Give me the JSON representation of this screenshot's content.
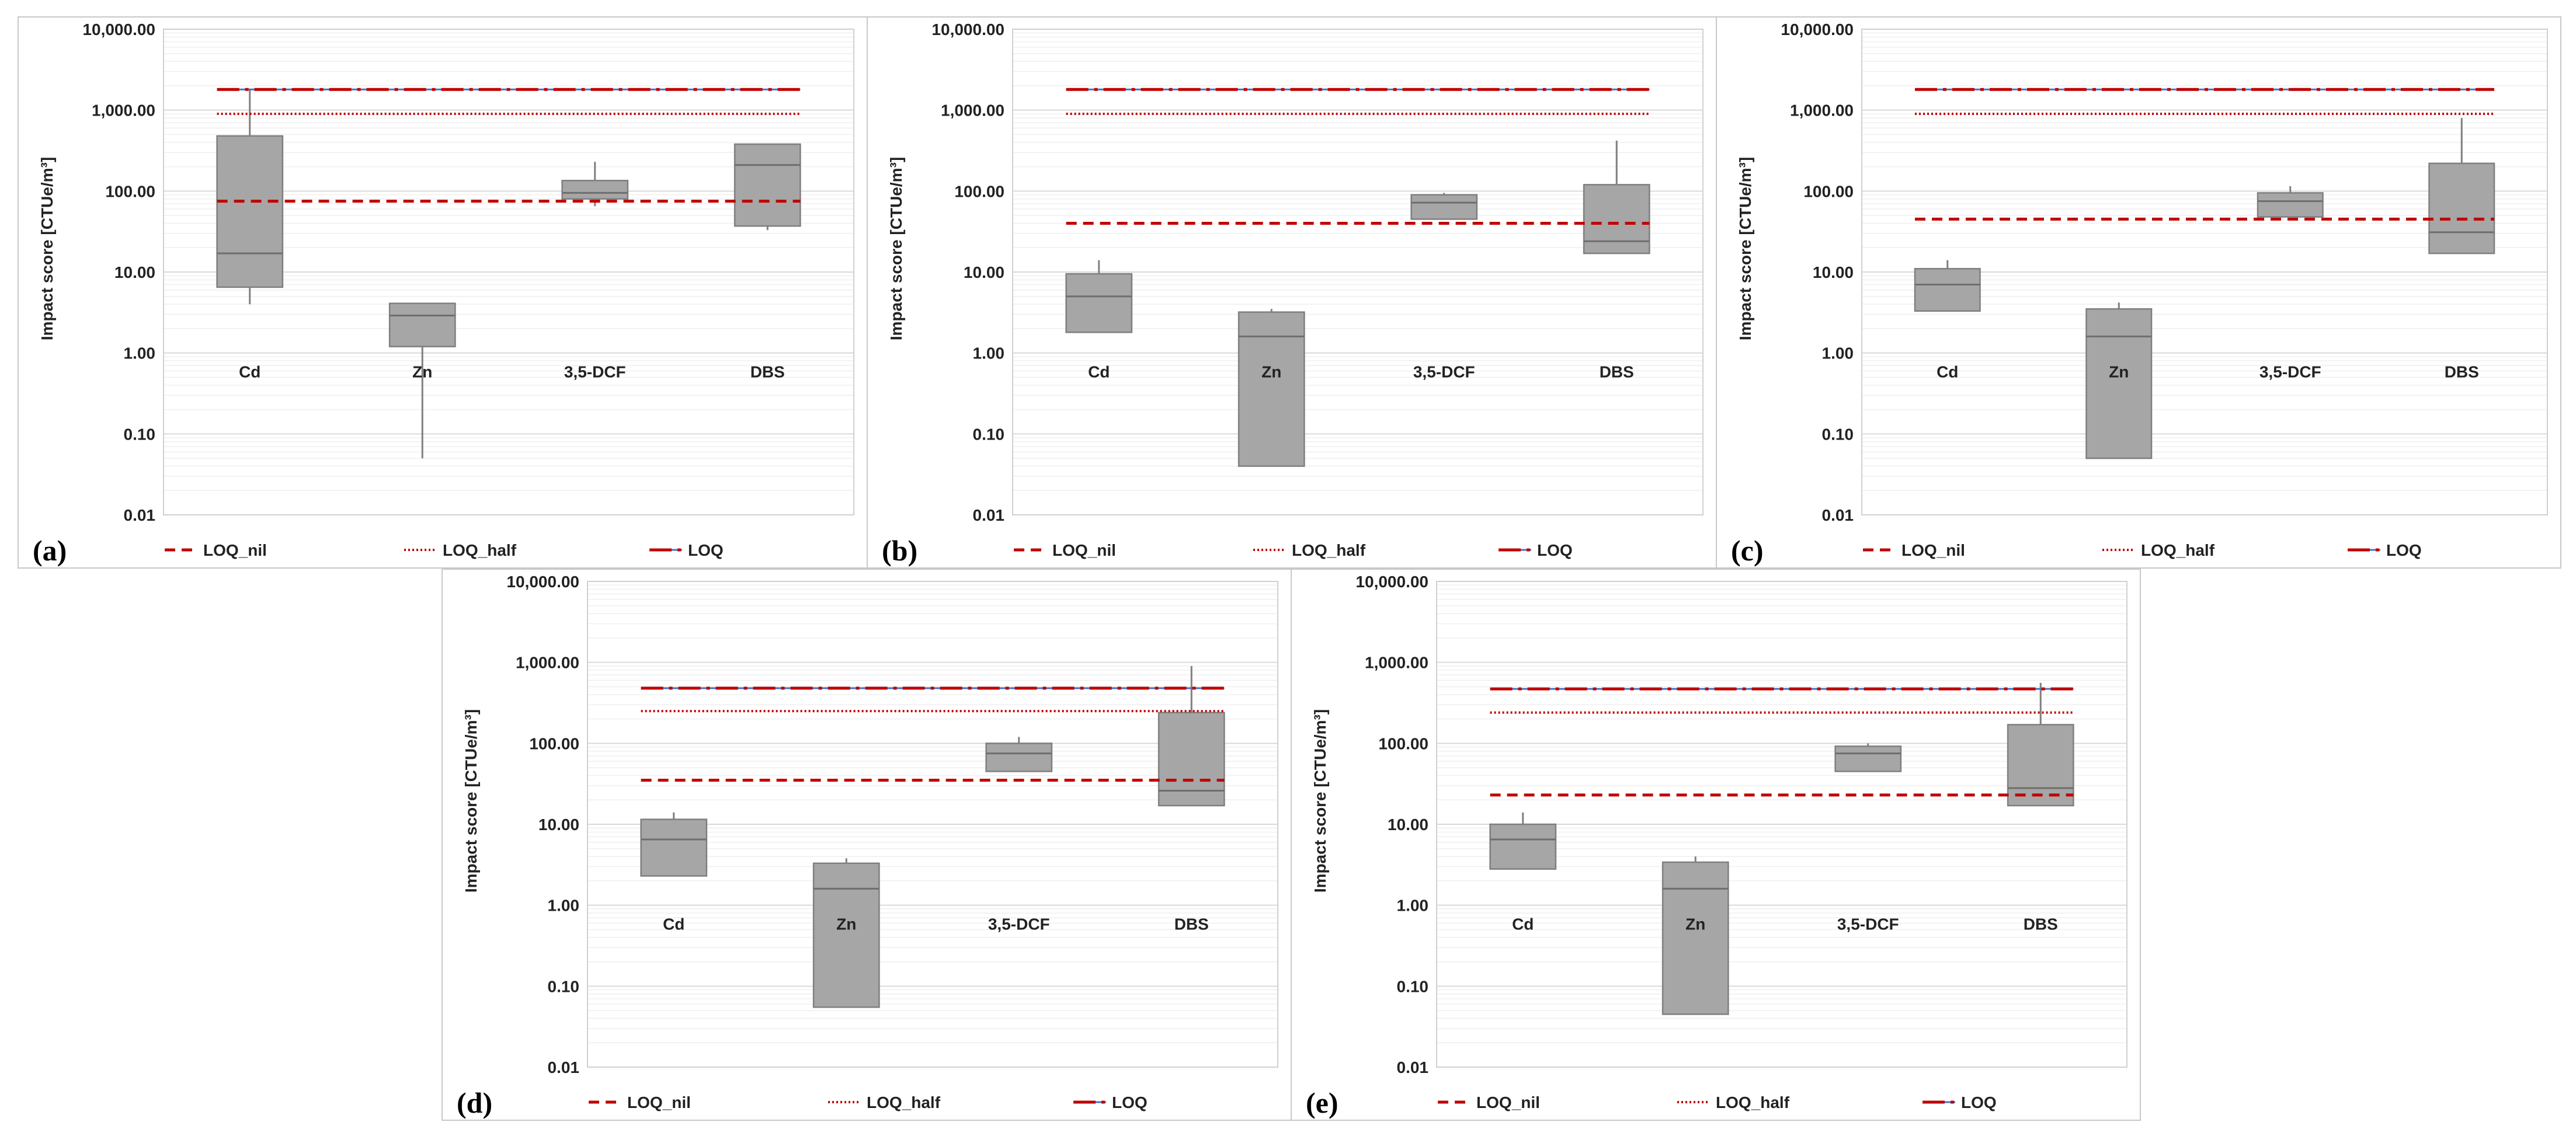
{
  "y_axis_label": "Impact score [CTUe/m³]",
  "legend": {
    "nil": "LOQ_nil",
    "half": "LOQ_half",
    "loq": "LOQ"
  },
  "colors": {
    "box": "#a6a6a6",
    "box_edge": "#7f7f7f",
    "loq_red": "#c00000",
    "loq_blue": "#4472c4",
    "grid": "#e3e3e3"
  },
  "chart_data": [
    {
      "type": "box",
      "panel_label": "(a)",
      "categories": [
        "Cd",
        "Zn",
        "3,5-DCF",
        "DBS"
      ],
      "y_scale": "log",
      "ylim": [
        0.01,
        10000
      ],
      "y_ticks": [
        "0.01",
        "0.10",
        "1.00",
        "10.00",
        "100.00",
        "1,000.00",
        "10,000.00"
      ],
      "boxes": [
        {
          "category": "Cd",
          "min": 4,
          "q1": 6.5,
          "median": 17,
          "q3": 480,
          "max": 1800
        },
        {
          "category": "Zn",
          "min": 0.05,
          "q1": 1.2,
          "median": 2.9,
          "q3": 4.1,
          "max": 4.1
        },
        {
          "category": "3,5-DCF",
          "min": 65,
          "q1": 80,
          "median": 95,
          "q3": 135,
          "max": 230
        },
        {
          "category": "DBS",
          "min": 33,
          "q1": 37,
          "median": 210,
          "q3": 380,
          "max": 380
        }
      ],
      "lines": {
        "LOQ_nil": 75,
        "LOQ_half": 900,
        "LOQ": 1800
      }
    },
    {
      "type": "box",
      "panel_label": "(b)",
      "categories": [
        "Cd",
        "Zn",
        "3,5-DCF",
        "DBS"
      ],
      "y_scale": "log",
      "ylim": [
        0.01,
        10000
      ],
      "y_ticks": [
        "0.01",
        "0.10",
        "1.00",
        "10.00",
        "100.00",
        "1,000.00",
        "10,000.00"
      ],
      "boxes": [
        {
          "category": "Cd",
          "min": 1.8,
          "q1": 1.8,
          "median": 5,
          "q3": 9.5,
          "max": 14
        },
        {
          "category": "Zn",
          "min": 0.04,
          "q1": 0.04,
          "median": 1.6,
          "q3": 3.2,
          "max": 3.5
        },
        {
          "category": "3,5-DCF",
          "min": 45,
          "q1": 45,
          "median": 72,
          "q3": 90,
          "max": 95
        },
        {
          "category": "DBS",
          "min": 17,
          "q1": 17,
          "median": 24,
          "q3": 120,
          "max": 420
        }
      ],
      "lines": {
        "LOQ_nil": 40,
        "LOQ_half": 900,
        "LOQ": 1800
      }
    },
    {
      "type": "box",
      "panel_label": "(c)",
      "categories": [
        "Cd",
        "Zn",
        "3,5-DCF",
        "DBS"
      ],
      "y_scale": "log",
      "ylim": [
        0.01,
        10000
      ],
      "y_ticks": [
        "0.01",
        "0.10",
        "1.00",
        "10.00",
        "100.00",
        "1,000.00",
        "10,000.00"
      ],
      "boxes": [
        {
          "category": "Cd",
          "min": 3.3,
          "q1": 3.3,
          "median": 7,
          "q3": 11,
          "max": 14
        },
        {
          "category": "Zn",
          "min": 0.05,
          "q1": 0.05,
          "median": 1.6,
          "q3": 3.5,
          "max": 4.2
        },
        {
          "category": "3,5-DCF",
          "min": 48,
          "q1": 48,
          "median": 75,
          "q3": 95,
          "max": 115
        },
        {
          "category": "DBS",
          "min": 17,
          "q1": 17,
          "median": 31,
          "q3": 220,
          "max": 800
        }
      ],
      "lines": {
        "LOQ_nil": 45,
        "LOQ_half": 900,
        "LOQ": 1800
      }
    },
    {
      "type": "box",
      "panel_label": "(d)",
      "categories": [
        "Cd",
        "Zn",
        "3,5-DCF",
        "DBS"
      ],
      "y_scale": "log",
      "ylim": [
        0.01,
        10000
      ],
      "y_ticks": [
        "0.01",
        "0.10",
        "1.00",
        "10.00",
        "100.00",
        "1,000.00",
        "10,000.00"
      ],
      "boxes": [
        {
          "category": "Cd",
          "min": 2.3,
          "q1": 2.3,
          "median": 6.5,
          "q3": 11.5,
          "max": 14
        },
        {
          "category": "Zn",
          "min": 0.055,
          "q1": 0.055,
          "median": 1.6,
          "q3": 3.3,
          "max": 3.8
        },
        {
          "category": "3,5-DCF",
          "min": 45,
          "q1": 45,
          "median": 75,
          "q3": 100,
          "max": 120
        },
        {
          "category": "DBS",
          "min": 17,
          "q1": 17,
          "median": 26,
          "q3": 240,
          "max": 900
        }
      ],
      "lines": {
        "LOQ_nil": 35,
        "LOQ_half": 250,
        "LOQ": 480
      }
    },
    {
      "type": "box",
      "panel_label": "(e)",
      "categories": [
        "Cd",
        "Zn",
        "3,5-DCF",
        "DBS"
      ],
      "y_scale": "log",
      "ylim": [
        0.01,
        10000
      ],
      "y_ticks": [
        "0.01",
        "0.10",
        "1.00",
        "10.00",
        "100.00",
        "1,000.00",
        "10,000.00"
      ],
      "boxes": [
        {
          "category": "Cd",
          "min": 2.8,
          "q1": 2.8,
          "median": 6.5,
          "q3": 10,
          "max": 14
        },
        {
          "category": "Zn",
          "min": 0.045,
          "q1": 0.045,
          "median": 1.6,
          "q3": 3.4,
          "max": 4
        },
        {
          "category": "3,5-DCF",
          "min": 45,
          "q1": 45,
          "median": 75,
          "q3": 92,
          "max": 100
        },
        {
          "category": "DBS",
          "min": 17,
          "q1": 17,
          "median": 28,
          "q3": 170,
          "max": 560
        }
      ],
      "lines": {
        "LOQ_nil": 23,
        "LOQ_half": 240,
        "LOQ": 470
      }
    }
  ]
}
